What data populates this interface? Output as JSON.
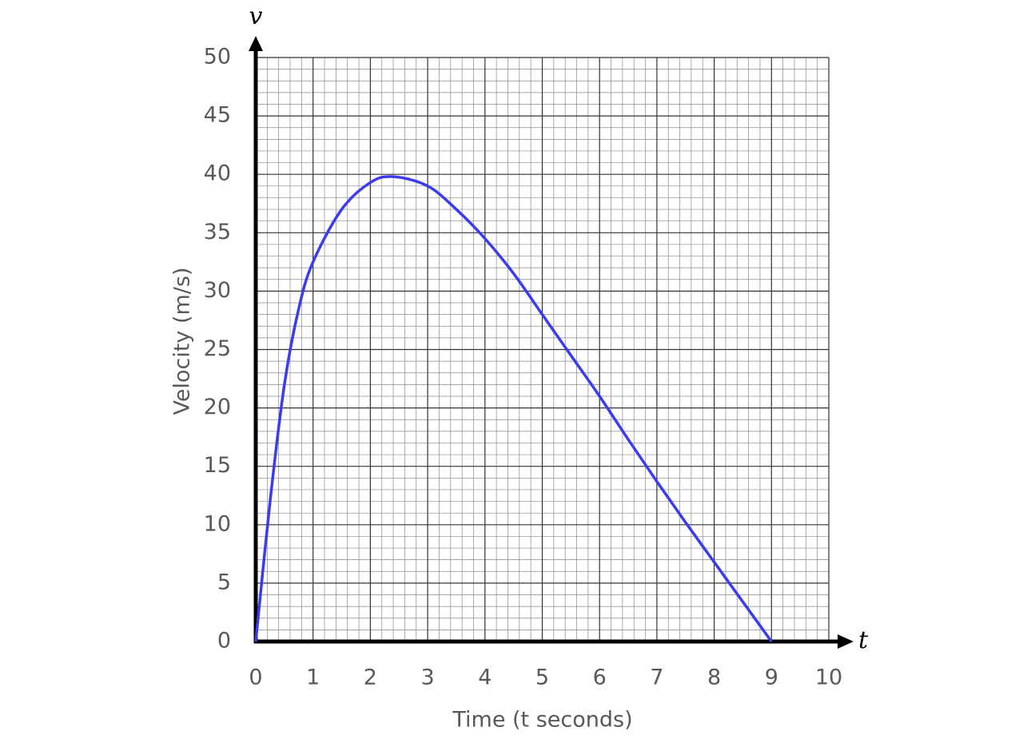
{
  "chart_data": {
    "type": "line",
    "x_label": "Time (t seconds)",
    "y_label": "Velocity (m/s)",
    "x_symbol": "t",
    "y_symbol": "v",
    "x": [
      0,
      0.25,
      0.5,
      0.75,
      1,
      1.5,
      2,
      2.4,
      3,
      3.5,
      4,
      4.5,
      5,
      5.5,
      6,
      6.5,
      7,
      7.5,
      8,
      8.5,
      9
    ],
    "series": [
      {
        "color": "#3b3bf0",
        "values": [
          0,
          12,
          22,
          28.5,
          32.5,
          37,
          39.3,
          39.8,
          39,
          37,
          34.5,
          31.5,
          28,
          24.5,
          21,
          17.3,
          13.7,
          10.2,
          6.8,
          3.4,
          0
        ]
      }
    ],
    "xlim": [
      0,
      10
    ],
    "ylim": [
      0,
      50
    ],
    "xticks": [
      0,
      1,
      2,
      3,
      4,
      5,
      6,
      7,
      8,
      9,
      10
    ],
    "yticks": [
      0,
      5,
      10,
      15,
      20,
      25,
      30,
      35,
      40,
      45,
      50
    ],
    "grid": true
  }
}
